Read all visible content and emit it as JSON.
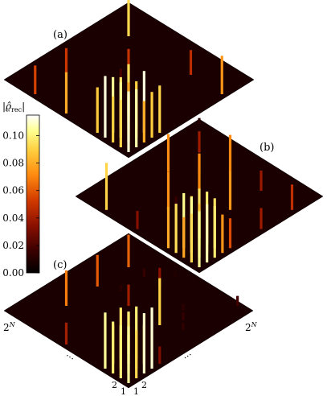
{
  "chart_data": {
    "type": "heatmap",
    "description_kind": "three stacked 3D bar-matrix plots of a reconstructed density matrix",
    "panels": [
      {
        "label": "(a)"
      },
      {
        "label": "(b)"
      },
      {
        "label": "(c)"
      }
    ],
    "colorbar": {
      "title": "|ϱ̂rec|",
      "ticks": [
        "0.10",
        "0.08",
        "0.06",
        "0.04",
        "0.02",
        "0.00"
      ],
      "tick_values": [
        0.1,
        0.08,
        0.06,
        0.04,
        0.02,
        0.0
      ],
      "range": [
        0.0,
        0.115
      ],
      "colormap": [
        "#000000",
        "#3a0000",
        "#8a1000",
        "#d23a00",
        "#ff8a10",
        "#ffd040",
        "#ffff90",
        "#ffffff"
      ]
    },
    "axes": {
      "left_end": "2^N",
      "right_end": "2^N",
      "left_ticks": [
        "2",
        "1"
      ],
      "right_ticks": [
        "1",
        "2"
      ],
      "ellipsis": "⋯"
    }
  }
}
